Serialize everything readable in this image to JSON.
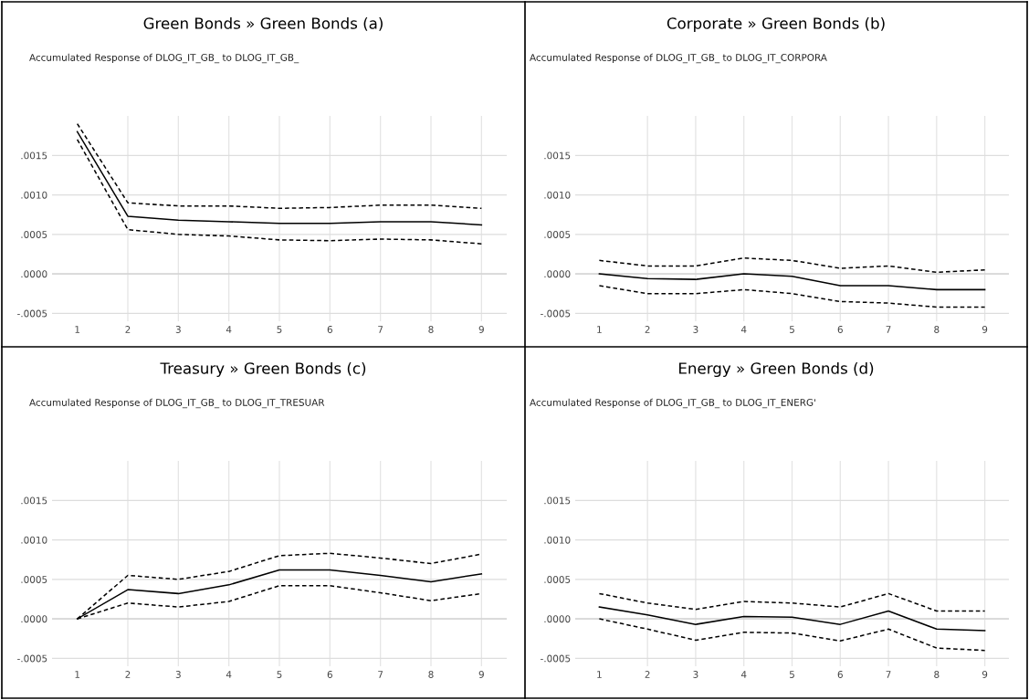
{
  "chart_data": [
    {
      "type": "line",
      "title": "Green Bonds » Green Bonds (a)",
      "subtitle": "Accumulated Response of DLOG_IT_GB_ to DLOG_IT_GB_",
      "categories": [
        "1",
        "2",
        "3",
        "4",
        "5",
        "6",
        "7",
        "8",
        "9"
      ],
      "ylim": [
        -0.0006,
        0.002
      ],
      "yticks": [
        {
          "value": -0.0005,
          "label": "-.0005"
        },
        {
          "value": 0,
          "label": ".0000"
        },
        {
          "value": 0.0005,
          "label": ".0005"
        },
        {
          "value": 0.001,
          "label": ".0010"
        },
        {
          "value": 0.0015,
          "label": ".0015"
        }
      ],
      "grid": true,
      "series": [
        {
          "color": "#000000",
          "line_style": "solid",
          "values": [
            0.0018,
            0.00073,
            0.00068,
            0.00066,
            0.00064,
            0.00064,
            0.00066,
            0.00066,
            0.00062
          ]
        },
        {
          "color": "#000000",
          "line_style": "dashed",
          "values": [
            0.0019,
            0.0009,
            0.00086,
            0.00086,
            0.00083,
            0.00084,
            0.00087,
            0.00087,
            0.00083
          ]
        },
        {
          "color": "#000000",
          "line_style": "dashed",
          "values": [
            0.0017,
            0.00056,
            0.0005,
            0.00048,
            0.00043,
            0.00042,
            0.00044,
            0.00043,
            0.00038
          ]
        }
      ]
    },
    {
      "type": "line",
      "title": "Corporate » Green Bonds (b)",
      "subtitle": "Accumulated Response of DLOG_IT_GB_ to DLOG_IT_CORPORA",
      "categories": [
        "1",
        "2",
        "3",
        "4",
        "5",
        "6",
        "7",
        "8",
        "9"
      ],
      "ylim": [
        -0.0006,
        0.002
      ],
      "yticks": [
        {
          "value": -0.0005,
          "label": "-.0005"
        },
        {
          "value": 0,
          "label": ".0000"
        },
        {
          "value": 0.0005,
          "label": ".0005"
        },
        {
          "value": 0.001,
          "label": ".0010"
        },
        {
          "value": 0.0015,
          "label": ".0015"
        }
      ],
      "grid": true,
      "series": [
        {
          "color": "#000000",
          "line_style": "solid",
          "values": [
            0.0,
            -6e-05,
            -7e-05,
            0.0,
            -3e-05,
            -0.00015,
            -0.00015,
            -0.0002,
            -0.0002
          ]
        },
        {
          "color": "#000000",
          "line_style": "dashed",
          "values": [
            0.00017,
            0.0001,
            0.0001,
            0.0002,
            0.00017,
            7e-05,
            0.0001,
            2e-05,
            5e-05
          ]
        },
        {
          "color": "#000000",
          "line_style": "dashed",
          "values": [
            -0.00015,
            -0.00025,
            -0.00025,
            -0.0002,
            -0.00025,
            -0.00035,
            -0.00037,
            -0.00042,
            -0.00042
          ]
        }
      ]
    },
    {
      "type": "line",
      "title": "Treasury » Green Bonds (c)",
      "subtitle": "Accumulated Response of DLOG_IT_GB_ to DLOG_IT_TRESUAR",
      "categories": [
        "1",
        "2",
        "3",
        "4",
        "5",
        "6",
        "7",
        "8",
        "9"
      ],
      "ylim": [
        -0.0006,
        0.002
      ],
      "yticks": [
        {
          "value": -0.0005,
          "label": "-.0005"
        },
        {
          "value": 0,
          "label": ".0000"
        },
        {
          "value": 0.0005,
          "label": ".0005"
        },
        {
          "value": 0.001,
          "label": ".0010"
        },
        {
          "value": 0.0015,
          "label": ".0015"
        }
      ],
      "grid": true,
      "series": [
        {
          "color": "#000000",
          "line_style": "solid",
          "values": [
            0.0,
            0.00037,
            0.00032,
            0.00043,
            0.00062,
            0.00062,
            0.00055,
            0.00047,
            0.00057
          ]
        },
        {
          "color": "#000000",
          "line_style": "dashed",
          "values": [
            0.0,
            0.00055,
            0.0005,
            0.0006,
            0.0008,
            0.00083,
            0.00077,
            0.0007,
            0.00082
          ]
        },
        {
          "color": "#000000",
          "line_style": "dashed",
          "values": [
            0.0,
            0.0002,
            0.00015,
            0.00022,
            0.00042,
            0.00042,
            0.00033,
            0.00023,
            0.00032
          ]
        }
      ]
    },
    {
      "type": "line",
      "title": "Energy » Green Bonds (d)",
      "subtitle": "Accumulated Response of DLOG_IT_GB_ to DLOG_IT_ENERG'",
      "categories": [
        "1",
        "2",
        "3",
        "4",
        "5",
        "6",
        "7",
        "8",
        "9"
      ],
      "ylim": [
        -0.0006,
        0.002
      ],
      "yticks": [
        {
          "value": -0.0005,
          "label": "-.0005"
        },
        {
          "value": 0,
          "label": ".0000"
        },
        {
          "value": 0.0005,
          "label": ".0005"
        },
        {
          "value": 0.001,
          "label": ".0010"
        },
        {
          "value": 0.0015,
          "label": ".0015"
        }
      ],
      "grid": true,
      "series": [
        {
          "color": "#000000",
          "line_style": "solid",
          "values": [
            0.00015,
            5e-05,
            -7e-05,
            3e-05,
            2e-05,
            -7e-05,
            0.0001,
            -0.00013,
            -0.00015
          ]
        },
        {
          "color": "#000000",
          "line_style": "dashed",
          "values": [
            0.00032,
            0.0002,
            0.00012,
            0.00022,
            0.0002,
            0.00015,
            0.00032,
            0.0001,
            0.0001
          ]
        },
        {
          "color": "#000000",
          "line_style": "dashed",
          "values": [
            0.0,
            -0.00013,
            -0.00027,
            -0.00017,
            -0.00018,
            -0.00028,
            -0.00013,
            -0.00037,
            -0.0004
          ]
        }
      ]
    }
  ]
}
